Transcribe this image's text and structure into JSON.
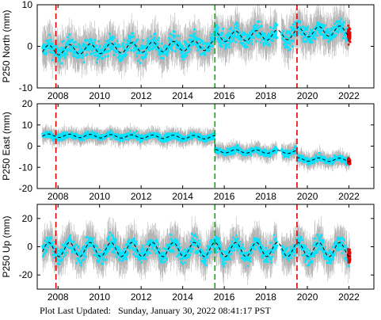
{
  "footer": {
    "label": "Plot Last Updated:",
    "timestamp": "Sunday, January 30, 2022 08:41:17 PST"
  },
  "style": {
    "data_color": "#00e5ff",
    "error_bar_color": "#b0b0b0",
    "recent_data_color": "#e00000",
    "model_line_color": "#000000",
    "offset_line_red": "#e00000",
    "offset_line_green": "#00b000"
  },
  "chart_data": [
    {
      "type": "scatter",
      "ylabel": "P250 North (mm)",
      "xlim": [
        2007.0,
        2023.2
      ],
      "ylim": [
        -10,
        10
      ],
      "yticks": [
        -10,
        0,
        10
      ],
      "xticks": [
        2008,
        2010,
        2012,
        2014,
        2016,
        2018,
        2020,
        2022
      ],
      "xtick_labels": true,
      "grid": false,
      "vertical_lines": [
        {
          "x": 2007.9,
          "color": "red"
        },
        {
          "x": 2015.55,
          "color": "green"
        },
        {
          "x": 2019.5,
          "color": "red"
        }
      ],
      "series": [
        {
          "kind": "model",
          "seasonal": {
            "base": -1.0,
            "amplitude": 1.2,
            "trend": 0.15,
            "period": 1
          },
          "offsets": [
            {
              "x": 2015.55,
              "dy": 2.0
            },
            {
              "x": 2019.5,
              "dy": 0.5
            }
          ]
        },
        {
          "kind": "observed",
          "scatter": 2.2,
          "error_bar": 3.5
        }
      ]
    },
    {
      "type": "scatter",
      "ylabel": "P250 East (mm)",
      "xlim": [
        2007.0,
        2023.2
      ],
      "ylim": [
        -20,
        20
      ],
      "yticks": [
        -20,
        -10,
        0,
        10,
        20
      ],
      "xticks": [
        2008,
        2010,
        2012,
        2014,
        2016,
        2018,
        2020,
        2022
      ],
      "xtick_labels": true,
      "grid": false,
      "vertical_lines": [
        {
          "x": 2007.9,
          "color": "red"
        },
        {
          "x": 2015.55,
          "color": "green"
        },
        {
          "x": 2019.5,
          "color": "red"
        }
      ],
      "series": [
        {
          "kind": "model",
          "seasonal": {
            "base": 5.0,
            "amplitude": 0.8,
            "trend": -0.1,
            "period": 1
          },
          "offsets": [
            {
              "x": 2015.55,
              "dy": -6.5
            },
            {
              "x": 2019.5,
              "dy": -3.5
            }
          ]
        },
        {
          "kind": "observed",
          "scatter": 1.6,
          "error_bar": 3.0
        }
      ]
    },
    {
      "type": "scatter",
      "ylabel": "P250 Up (mm)",
      "xlim": [
        2007.0,
        2023.2
      ],
      "ylim": [
        -30,
        30
      ],
      "yticks": [
        -20,
        0,
        20
      ],
      "xticks": [
        2008,
        2010,
        2012,
        2014,
        2016,
        2018,
        2020,
        2022
      ],
      "xtick_labels": true,
      "grid": false,
      "vertical_lines": [
        {
          "x": 2007.9,
          "color": "red"
        },
        {
          "x": 2015.55,
          "color": "green"
        },
        {
          "x": 2019.5,
          "color": "red"
        }
      ],
      "series": [
        {
          "kind": "model",
          "seasonal": {
            "base": -2.0,
            "amplitude": 5.0,
            "trend": 0.0,
            "period": 1
          },
          "offsets": []
        },
        {
          "kind": "observed",
          "scatter": 6.0,
          "error_bar": 10.0
        }
      ]
    }
  ]
}
